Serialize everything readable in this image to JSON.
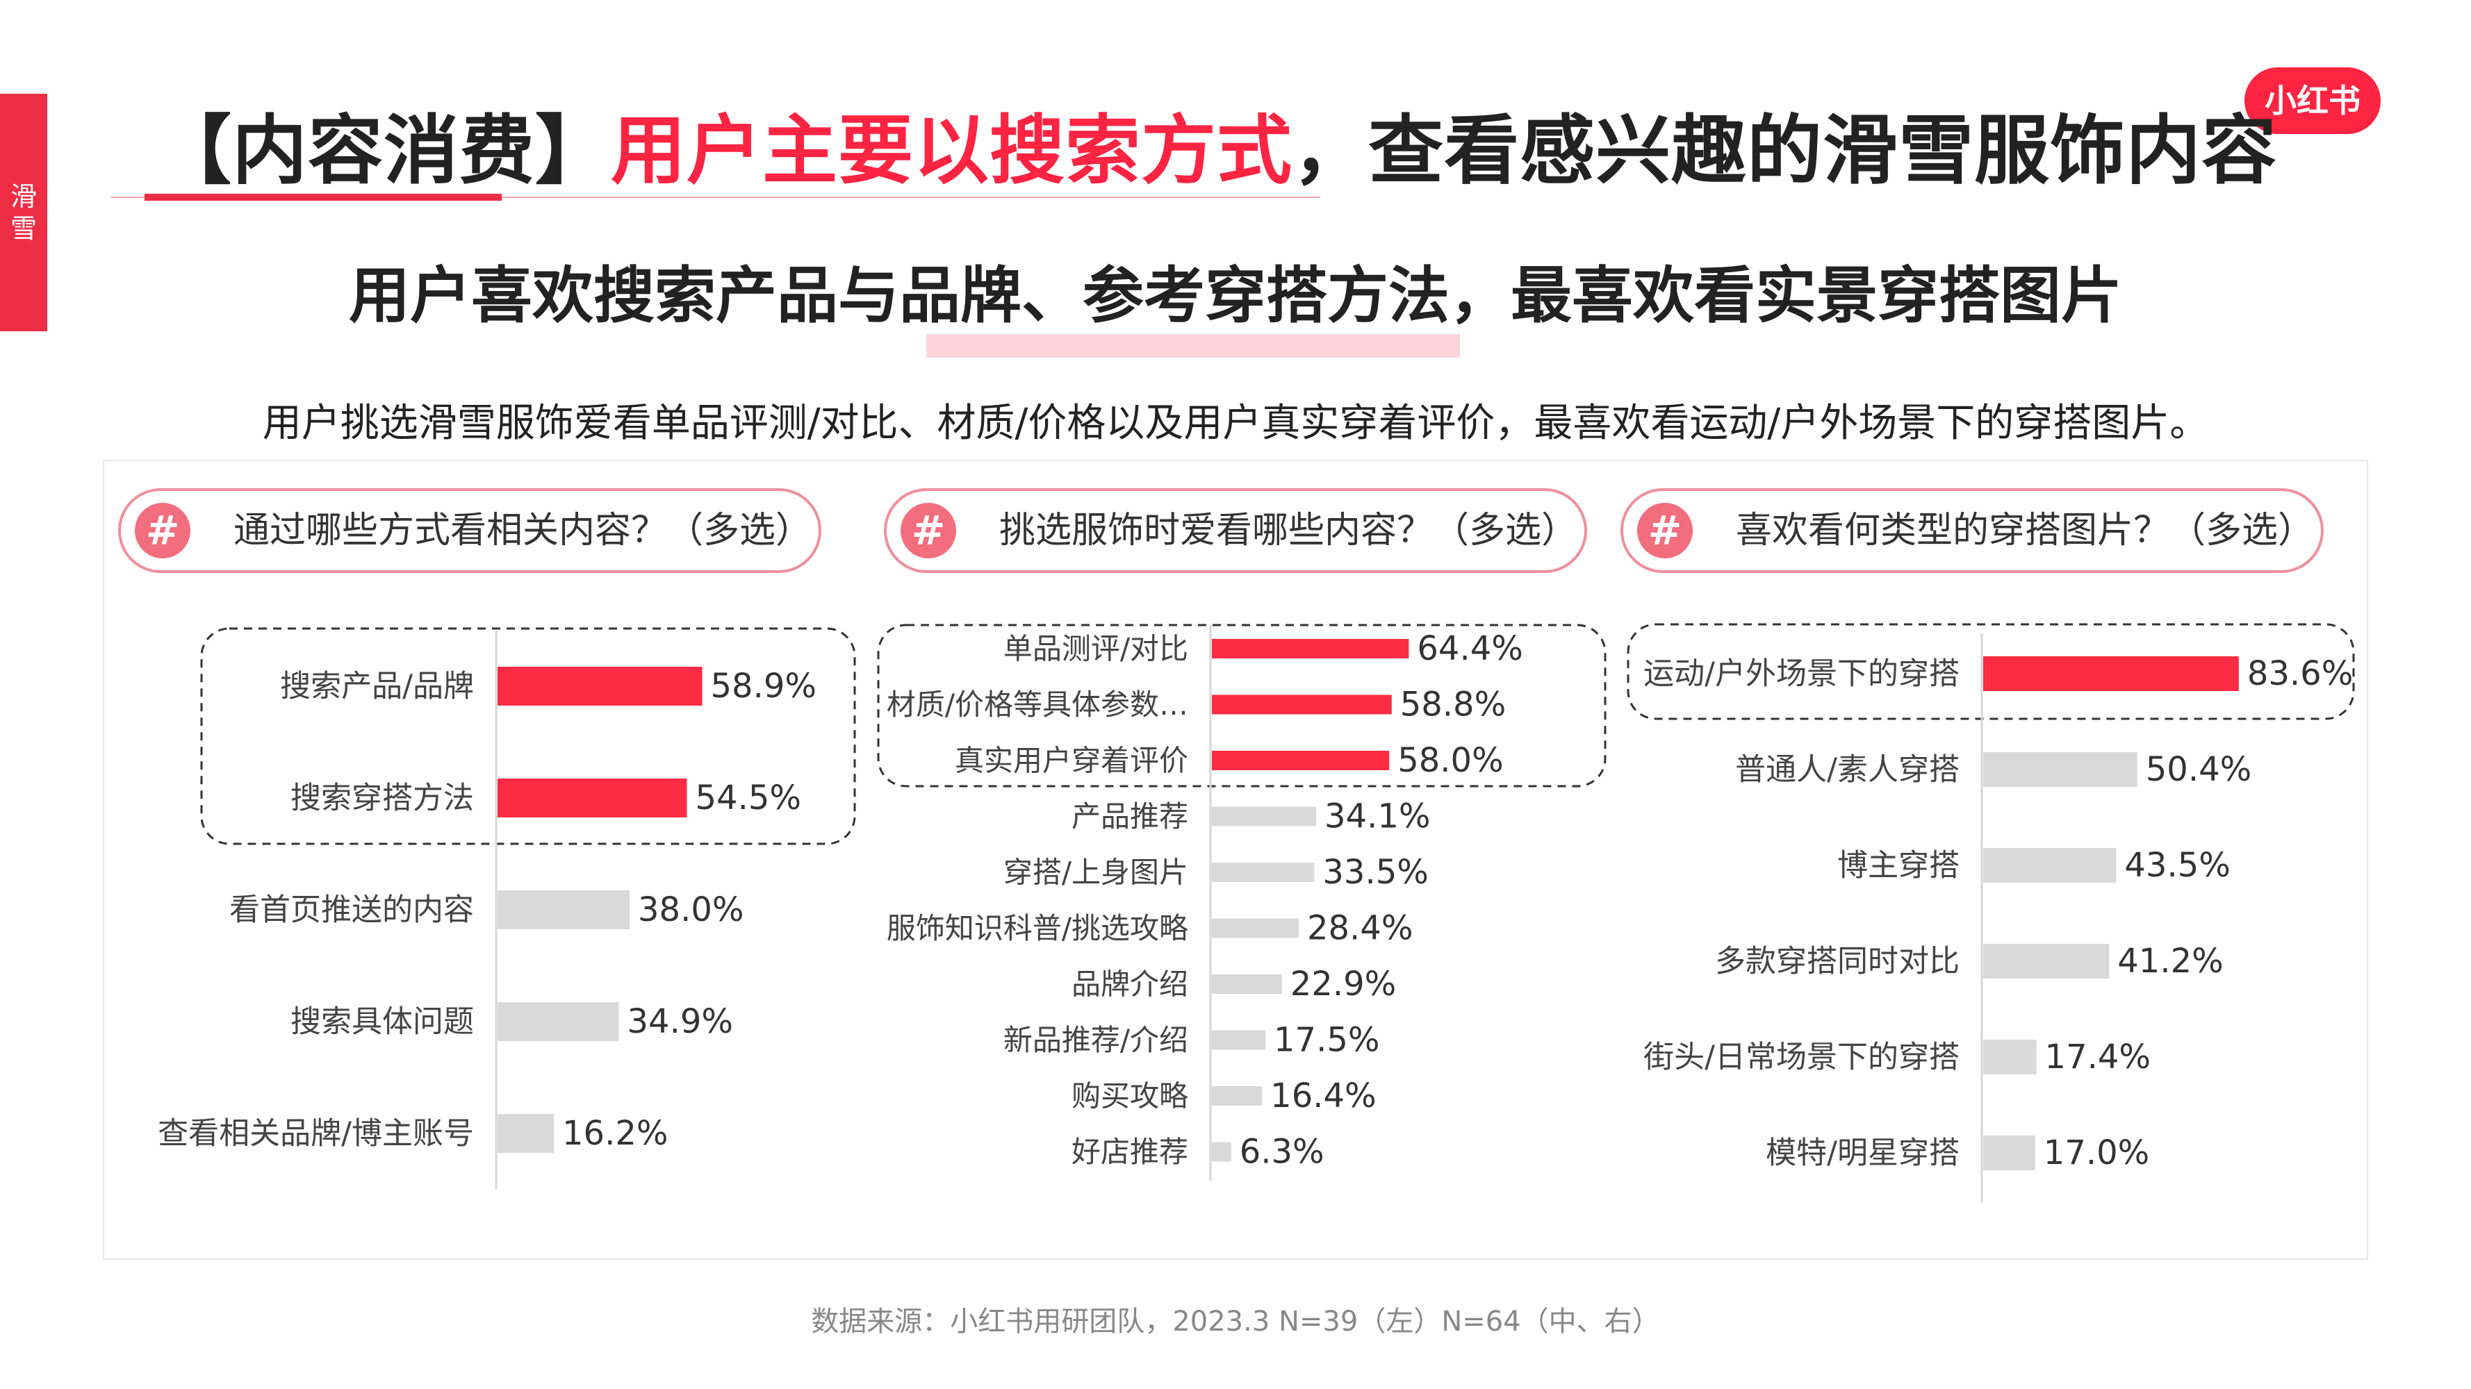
{
  "side_tab": "滑雪",
  "logo": "小红书",
  "title": {
    "bracket_left": "【",
    "topic": "内容消费",
    "bracket_right": "】",
    "highlight": "用户主要以搜索方式",
    "rest": "，查看感兴趣的滑雪服饰内容"
  },
  "subtitle": "用户喜欢搜索产品与品牌、参考穿搭方法，最喜欢看实景穿搭图片",
  "description": "用户挑选滑雪服饰爱看单品评测/对比、材质/价格以及用户真实穿着评价，最喜欢看运动/户外场景下的穿搭图片。",
  "source": "数据来源：小红书用研团队，2023.3 N=39（左）N=64（中、右）",
  "colors": {
    "accent": "#ff2442",
    "highlight_bar": "#fc2c44",
    "neutral_bar": "#d9d9d9",
    "pill_border": "#f08f9b",
    "hash_bg": "#f26d7d"
  },
  "chart_data": [
    {
      "type": "bar",
      "orientation": "horizontal",
      "title": "通过哪些方式看相关内容？（多选）",
      "title_icon": "#",
      "categories": [
        "搜索产品/品牌",
        "搜索穿搭方法",
        "看首页推送的内容",
        "搜索具体问题",
        "查看相关品牌/博主账号"
      ],
      "values": [
        58.9,
        54.5,
        38.0,
        34.9,
        16.2
      ],
      "labels": [
        "58.9%",
        "54.5%",
        "38.0%",
        "34.9%",
        "16.2%"
      ],
      "highlighted": [
        0,
        1
      ],
      "unit": "%"
    },
    {
      "type": "bar",
      "orientation": "horizontal",
      "title": "挑选服饰时爱看哪些内容？（多选）",
      "title_icon": "#",
      "categories": [
        "单品测评/对比",
        "材质/价格等具体参数…",
        "真实用户穿着评价",
        "产品推荐",
        "穿搭/上身图片",
        "服饰知识科普/挑选攻略",
        "品牌介绍",
        "新品推荐/介绍",
        "购买攻略",
        "好店推荐"
      ],
      "values": [
        64.4,
        58.8,
        58.0,
        34.1,
        33.5,
        28.4,
        22.9,
        17.5,
        16.4,
        6.3
      ],
      "labels": [
        "64.4%",
        "58.8%",
        "58.0%",
        "34.1%",
        "33.5%",
        "28.4%",
        "22.9%",
        "17.5%",
        "16.4%",
        "6.3%"
      ],
      "highlighted": [
        0,
        1,
        2
      ],
      "unit": "%"
    },
    {
      "type": "bar",
      "orientation": "horizontal",
      "title": "喜欢看何类型的穿搭图片？（多选）",
      "title_icon": "#",
      "categories": [
        "运动/户外场景下的穿搭",
        "普通人/素人穿搭",
        "博主穿搭",
        "多款穿搭同时对比",
        "街头/日常场景下的穿搭",
        "模特/明星穿搭"
      ],
      "values": [
        83.6,
        50.4,
        43.5,
        41.2,
        17.4,
        17.0
      ],
      "labels": [
        "83.6%",
        "50.4%",
        "43.5%",
        "41.2%",
        "17.4%",
        "17.0%"
      ],
      "highlighted": [
        0
      ],
      "unit": "%"
    }
  ]
}
